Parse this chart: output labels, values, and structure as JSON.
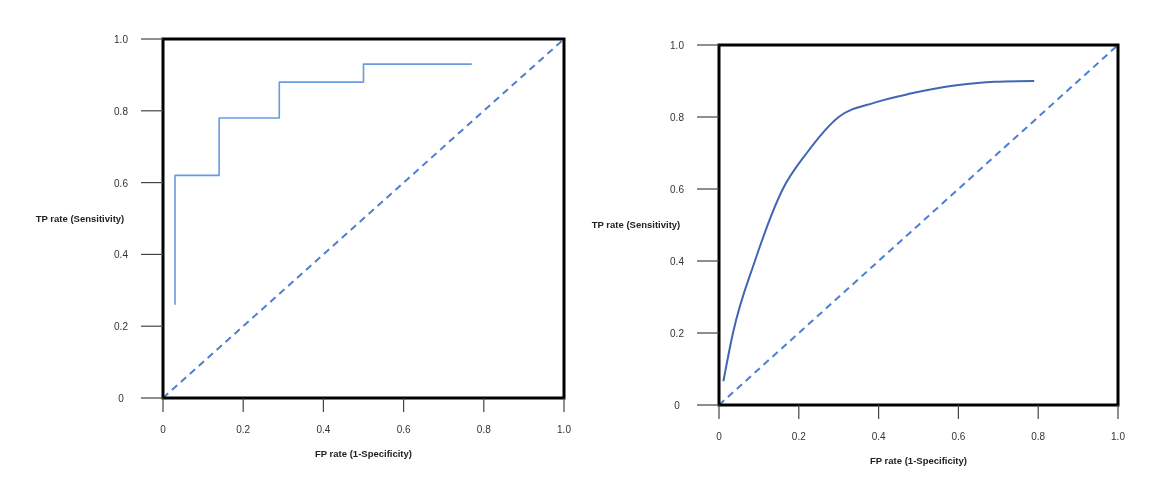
{
  "chart_data": [
    {
      "type": "step",
      "xlabel": "FP rate (1-Specificity)",
      "ylabel": "TP rate (Sensitivity)",
      "xlim": [
        0,
        1
      ],
      "ylim": [
        0,
        1
      ],
      "xticks": [
        0,
        0.2,
        0.4,
        0.6,
        0.8,
        {
          "value": 1,
          "label": "1.0"
        }
      ],
      "yticks": [
        0,
        0.2,
        0.4,
        0.6,
        0.8,
        {
          "value": 1,
          "label": "1.0"
        }
      ],
      "grid": false,
      "series": [
        {
          "color": "#6a9ae0",
          "x": [
            0.03,
            0.03,
            0.14,
            0.29,
            0.5,
            0.77
          ],
          "values": [
            0.26,
            0.62,
            0.78,
            0.88,
            0.93,
            0.93
          ],
          "line_style": "solid"
        },
        {
          "type": "line",
          "color": "#4a7fd4",
          "x": [
            0,
            1
          ],
          "values": [
            0,
            1
          ],
          "line_style": "dashed"
        }
      ]
    },
    {
      "type": "line",
      "xlabel": "FP rate (1-Specificity)",
      "ylabel": "TP rate (Sensitivity)",
      "xlim": [
        0,
        1
      ],
      "ylim": [
        0,
        1
      ],
      "xticks": [
        0,
        0.2,
        0.4,
        0.6,
        0.8,
        {
          "value": 1,
          "label": "1.0"
        }
      ],
      "yticks": [
        0,
        0.2,
        0.4,
        0.6,
        0.8,
        {
          "value": 1,
          "label": "1.0"
        }
      ],
      "grid": false,
      "series": [
        {
          "color": "#4166b4",
          "x": [
            0.011,
            0.035,
            0.09,
            0.16,
            0.22,
            0.3,
            0.39,
            0.48,
            0.595,
            0.69,
            0.79
          ],
          "values": [
            0.066,
            0.2,
            0.4,
            0.6,
            0.7,
            0.8,
            0.84,
            0.865,
            0.888,
            0.898,
            0.9
          ],
          "line_style": "solid"
        },
        {
          "color": "#4a7fd4",
          "x": [
            0,
            1
          ],
          "values": [
            0,
            1
          ],
          "line_style": "dashed"
        }
      ]
    }
  ]
}
